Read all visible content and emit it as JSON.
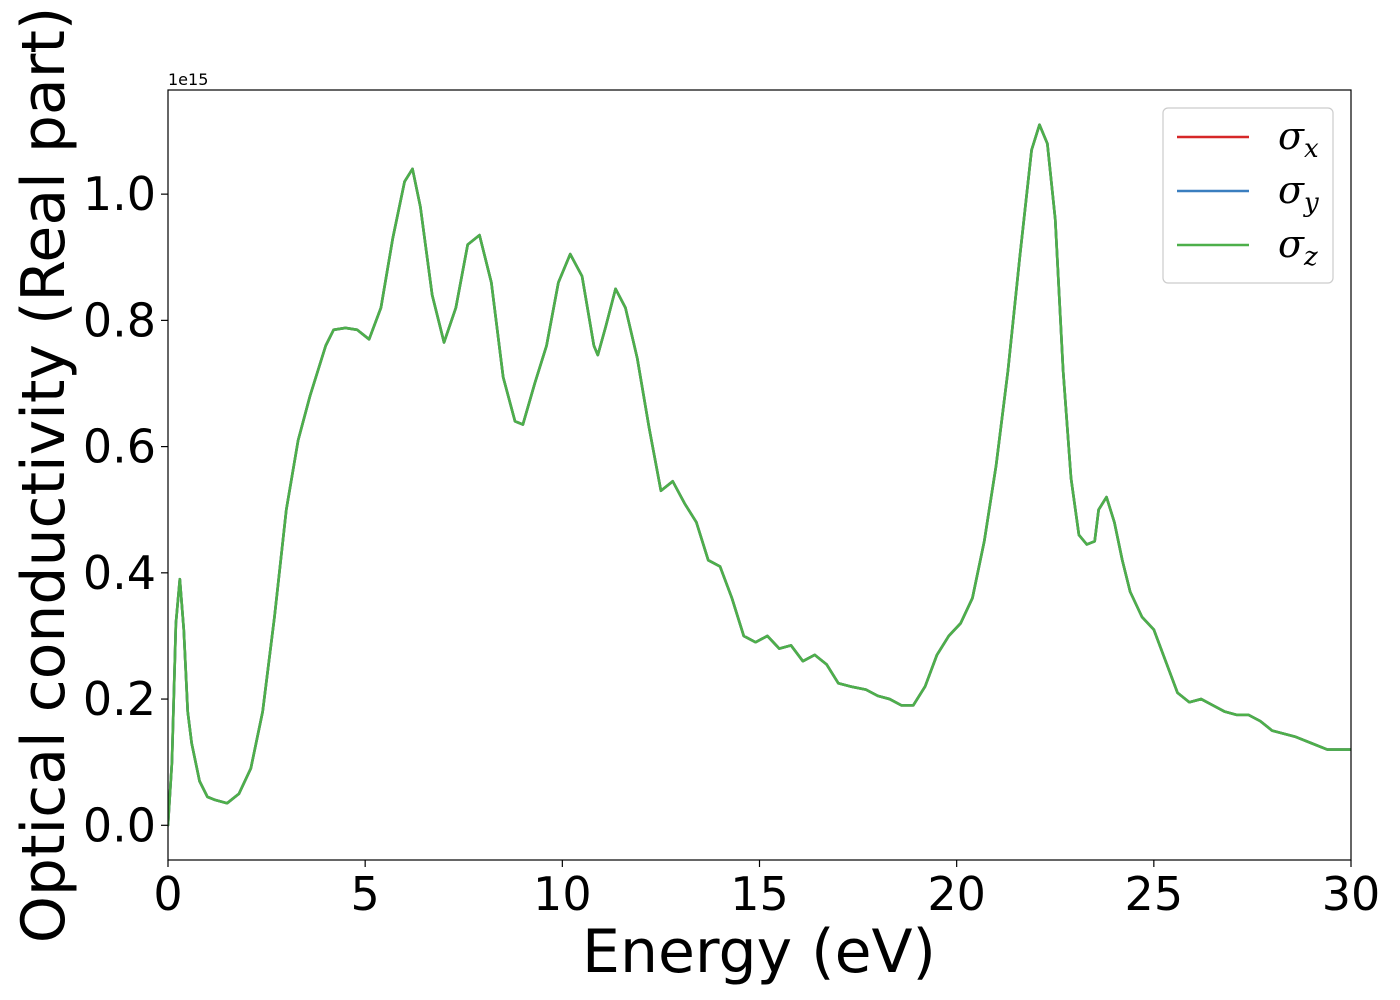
{
  "chart_data": {
    "type": "line",
    "xlabel": "Energy (eV)",
    "ylabel": "Optical conductivity (Real part)",
    "y_offset_label": "1e15",
    "xlim": [
      0,
      30
    ],
    "ylim": [
      -0.055,
      1.165
    ],
    "x_ticks": [
      0,
      5,
      10,
      15,
      20,
      25,
      30
    ],
    "x_tick_labels": [
      "0",
      "5",
      "10",
      "15",
      "20",
      "25",
      "30"
    ],
    "y_ticks": [
      0.0,
      0.2,
      0.4,
      0.6,
      0.8,
      1.0
    ],
    "y_tick_labels": [
      "0.0",
      "0.2",
      "0.4",
      "0.6",
      "0.8",
      "1.0"
    ],
    "legend_position": "top-right",
    "grid": false,
    "x": [
      0,
      0.1,
      0.2,
      0.3,
      0.4,
      0.5,
      0.6,
      0.8,
      1.0,
      1.2,
      1.5,
      1.8,
      2.1,
      2.4,
      2.7,
      3.0,
      3.3,
      3.6,
      4.0,
      4.2,
      4.5,
      4.8,
      5.1,
      5.4,
      5.7,
      6.0,
      6.2,
      6.4,
      6.7,
      7.0,
      7.3,
      7.6,
      7.9,
      8.2,
      8.5,
      8.8,
      9.0,
      9.3,
      9.6,
      9.9,
      10.2,
      10.5,
      10.8,
      10.9,
      11.1,
      11.35,
      11.6,
      11.9,
      12.2,
      12.5,
      12.8,
      13.1,
      13.4,
      13.7,
      14.0,
      14.3,
      14.6,
      14.9,
      15.2,
      15.5,
      15.8,
      16.1,
      16.4,
      16.7,
      17.0,
      17.3,
      17.7,
      18.0,
      18.3,
      18.6,
      18.9,
      19.2,
      19.5,
      19.8,
      20.1,
      20.4,
      20.7,
      21.0,
      21.3,
      21.6,
      21.9,
      22.1,
      22.3,
      22.5,
      22.7,
      22.9,
      23.1,
      23.3,
      23.5,
      23.6,
      23.8,
      24.0,
      24.2,
      24.4,
      24.7,
      25.0,
      25.3,
      25.6,
      25.9,
      26.2,
      26.5,
      26.8,
      27.1,
      27.4,
      27.7,
      28.0,
      28.3,
      28.6,
      29.0,
      29.4,
      29.7,
      30.0
    ],
    "series": [
      {
        "name": "σx",
        "color": "#d62728",
        "y": [
          0.0,
          0.1,
          0.32,
          0.39,
          0.31,
          0.18,
          0.13,
          0.07,
          0.045,
          0.04,
          0.035,
          0.05,
          0.09,
          0.18,
          0.33,
          0.5,
          0.61,
          0.68,
          0.76,
          0.785,
          0.788,
          0.785,
          0.77,
          0.82,
          0.93,
          1.02,
          1.04,
          0.98,
          0.84,
          0.765,
          0.82,
          0.92,
          0.935,
          0.86,
          0.71,
          0.64,
          0.635,
          0.7,
          0.76,
          0.86,
          0.905,
          0.87,
          0.76,
          0.745,
          0.79,
          0.85,
          0.82,
          0.74,
          0.63,
          0.53,
          0.545,
          0.51,
          0.48,
          0.42,
          0.41,
          0.36,
          0.3,
          0.29,
          0.3,
          0.28,
          0.285,
          0.26,
          0.27,
          0.255,
          0.225,
          0.22,
          0.215,
          0.205,
          0.2,
          0.19,
          0.19,
          0.22,
          0.27,
          0.3,
          0.32,
          0.36,
          0.45,
          0.57,
          0.72,
          0.9,
          1.07,
          1.11,
          1.08,
          0.96,
          0.72,
          0.55,
          0.46,
          0.445,
          0.45,
          0.5,
          0.52,
          0.48,
          0.42,
          0.37,
          0.33,
          0.31,
          0.26,
          0.21,
          0.195,
          0.2,
          0.19,
          0.18,
          0.175,
          0.175,
          0.165,
          0.15,
          0.145,
          0.14,
          0.13,
          0.12,
          0.12,
          0.12
        ]
      },
      {
        "name": "σy",
        "color": "#3a7ebf",
        "y": [
          0.0,
          0.1,
          0.32,
          0.39,
          0.31,
          0.18,
          0.13,
          0.07,
          0.045,
          0.04,
          0.035,
          0.05,
          0.09,
          0.18,
          0.33,
          0.5,
          0.61,
          0.68,
          0.76,
          0.785,
          0.788,
          0.785,
          0.77,
          0.82,
          0.93,
          1.02,
          1.04,
          0.98,
          0.84,
          0.765,
          0.82,
          0.92,
          0.935,
          0.86,
          0.71,
          0.64,
          0.635,
          0.7,
          0.76,
          0.86,
          0.905,
          0.87,
          0.76,
          0.745,
          0.79,
          0.85,
          0.82,
          0.74,
          0.63,
          0.53,
          0.545,
          0.51,
          0.48,
          0.42,
          0.41,
          0.36,
          0.3,
          0.29,
          0.3,
          0.28,
          0.285,
          0.26,
          0.27,
          0.255,
          0.225,
          0.22,
          0.215,
          0.205,
          0.2,
          0.19,
          0.19,
          0.22,
          0.27,
          0.3,
          0.32,
          0.36,
          0.45,
          0.57,
          0.72,
          0.9,
          1.07,
          1.11,
          1.08,
          0.96,
          0.72,
          0.55,
          0.46,
          0.445,
          0.45,
          0.5,
          0.52,
          0.48,
          0.42,
          0.37,
          0.33,
          0.31,
          0.26,
          0.21,
          0.195,
          0.2,
          0.19,
          0.18,
          0.175,
          0.175,
          0.165,
          0.15,
          0.145,
          0.14,
          0.13,
          0.12,
          0.12,
          0.12
        ]
      },
      {
        "name": "σz",
        "color": "#4daf4a",
        "y": [
          0.0,
          0.1,
          0.32,
          0.39,
          0.31,
          0.18,
          0.13,
          0.07,
          0.045,
          0.04,
          0.035,
          0.05,
          0.09,
          0.18,
          0.33,
          0.5,
          0.61,
          0.68,
          0.76,
          0.785,
          0.788,
          0.785,
          0.77,
          0.82,
          0.93,
          1.02,
          1.04,
          0.98,
          0.84,
          0.765,
          0.82,
          0.92,
          0.935,
          0.86,
          0.71,
          0.64,
          0.635,
          0.7,
          0.76,
          0.86,
          0.905,
          0.87,
          0.76,
          0.745,
          0.79,
          0.85,
          0.82,
          0.74,
          0.63,
          0.53,
          0.545,
          0.51,
          0.48,
          0.42,
          0.41,
          0.36,
          0.3,
          0.29,
          0.3,
          0.28,
          0.285,
          0.26,
          0.27,
          0.255,
          0.225,
          0.22,
          0.215,
          0.205,
          0.2,
          0.19,
          0.19,
          0.22,
          0.27,
          0.3,
          0.32,
          0.36,
          0.45,
          0.57,
          0.72,
          0.9,
          1.07,
          1.11,
          1.08,
          0.96,
          0.72,
          0.55,
          0.46,
          0.445,
          0.45,
          0.5,
          0.52,
          0.48,
          0.42,
          0.37,
          0.33,
          0.31,
          0.26,
          0.21,
          0.195,
          0.2,
          0.19,
          0.18,
          0.175,
          0.175,
          0.165,
          0.15,
          0.145,
          0.14,
          0.13,
          0.12,
          0.12,
          0.12
        ]
      }
    ],
    "legend": [
      {
        "symbol": "σ",
        "subscript": "x",
        "color": "#d62728"
      },
      {
        "symbol": "σ",
        "subscript": "y",
        "color": "#3a7ebf"
      },
      {
        "symbol": "σ",
        "subscript": "z",
        "color": "#4daf4a"
      }
    ]
  }
}
